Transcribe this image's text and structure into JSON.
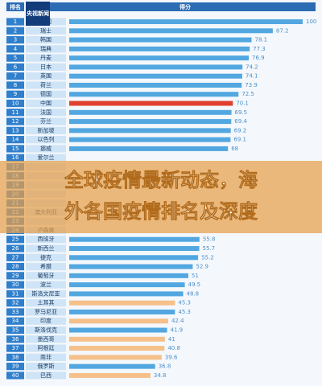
{
  "logo": "央视新闻",
  "overlay_title": [
    "全球疫情最新动态，海",
    "外各国疫情排名及深度"
  ],
  "chart_data": {
    "type": "bar",
    "headers": [
      "排名",
      "得分"
    ],
    "ranks": [
      1,
      2,
      3,
      4,
      5,
      6,
      7,
      8,
      9,
      10,
      11,
      12,
      13,
      14,
      15,
      16,
      17,
      18,
      19,
      20,
      21,
      22,
      23,
      24,
      25,
      26,
      27,
      28,
      29,
      30,
      31,
      32,
      33,
      34,
      35,
      36,
      37,
      38,
      39,
      40
    ],
    "categories": [
      "美国",
      "瑞士",
      "韩国",
      "瑞典",
      "丹麦",
      "日本",
      "英国",
      "荷兰",
      "德国",
      "中国",
      "法国",
      "芬兰",
      "新加坡",
      "以色列",
      "挪威",
      "爱尔兰",
      null,
      null,
      null,
      null,
      null,
      "澳大利亚",
      null,
      "卢森堡",
      "西班牙",
      "新西兰",
      "捷克",
      "希腊",
      "葡萄牙",
      "波兰",
      "斯洛文尼亚",
      "土耳其",
      "罗马尼亚",
      "印度",
      "斯洛伐克",
      "墨西哥",
      "阿根廷",
      "南非",
      "俄罗斯",
      "巴西"
    ],
    "values": [
      100,
      87.2,
      78.1,
      77.3,
      76.9,
      74.2,
      74.1,
      73.9,
      72.5,
      70.1,
      69.5,
      69.4,
      69.2,
      69.1,
      68,
      null,
      null,
      null,
      null,
      null,
      null,
      null,
      null,
      null,
      55.8,
      55.7,
      55.2,
      52.9,
      51,
      49.5,
      48.8,
      45.3,
      45.3,
      42.4,
      41.9,
      41,
      40.8,
      39.6,
      36.8,
      34.8
    ],
    "colors": [
      "#52a7e0",
      "#52a7e0",
      "#52a7e0",
      "#52a7e0",
      "#52a7e0",
      "#52a7e0",
      "#52a7e0",
      "#52a7e0",
      "#52a7e0",
      "#e0412e",
      "#52a7e0",
      "#52a7e0",
      "#52a7e0",
      "#52a7e0",
      "#52a7e0",
      "#52a7e0",
      "#52a7e0",
      "#52a7e0",
      "#52a7e0",
      "#52a7e0",
      "#52a7e0",
      "#52a7e0",
      "#52a7e0",
      "#52a7e0",
      "#52a7e0",
      "#52a7e0",
      "#52a7e0",
      "#52a7e0",
      "#52a7e0",
      "#52a7e0",
      "#52a7e0",
      "#f5c08a",
      "#52a7e0",
      "#f5c08a",
      "#52a7e0",
      "#f5c08a",
      "#f5c08a",
      "#f5c08a",
      "#52a7e0",
      "#f5c08a"
    ]
  }
}
